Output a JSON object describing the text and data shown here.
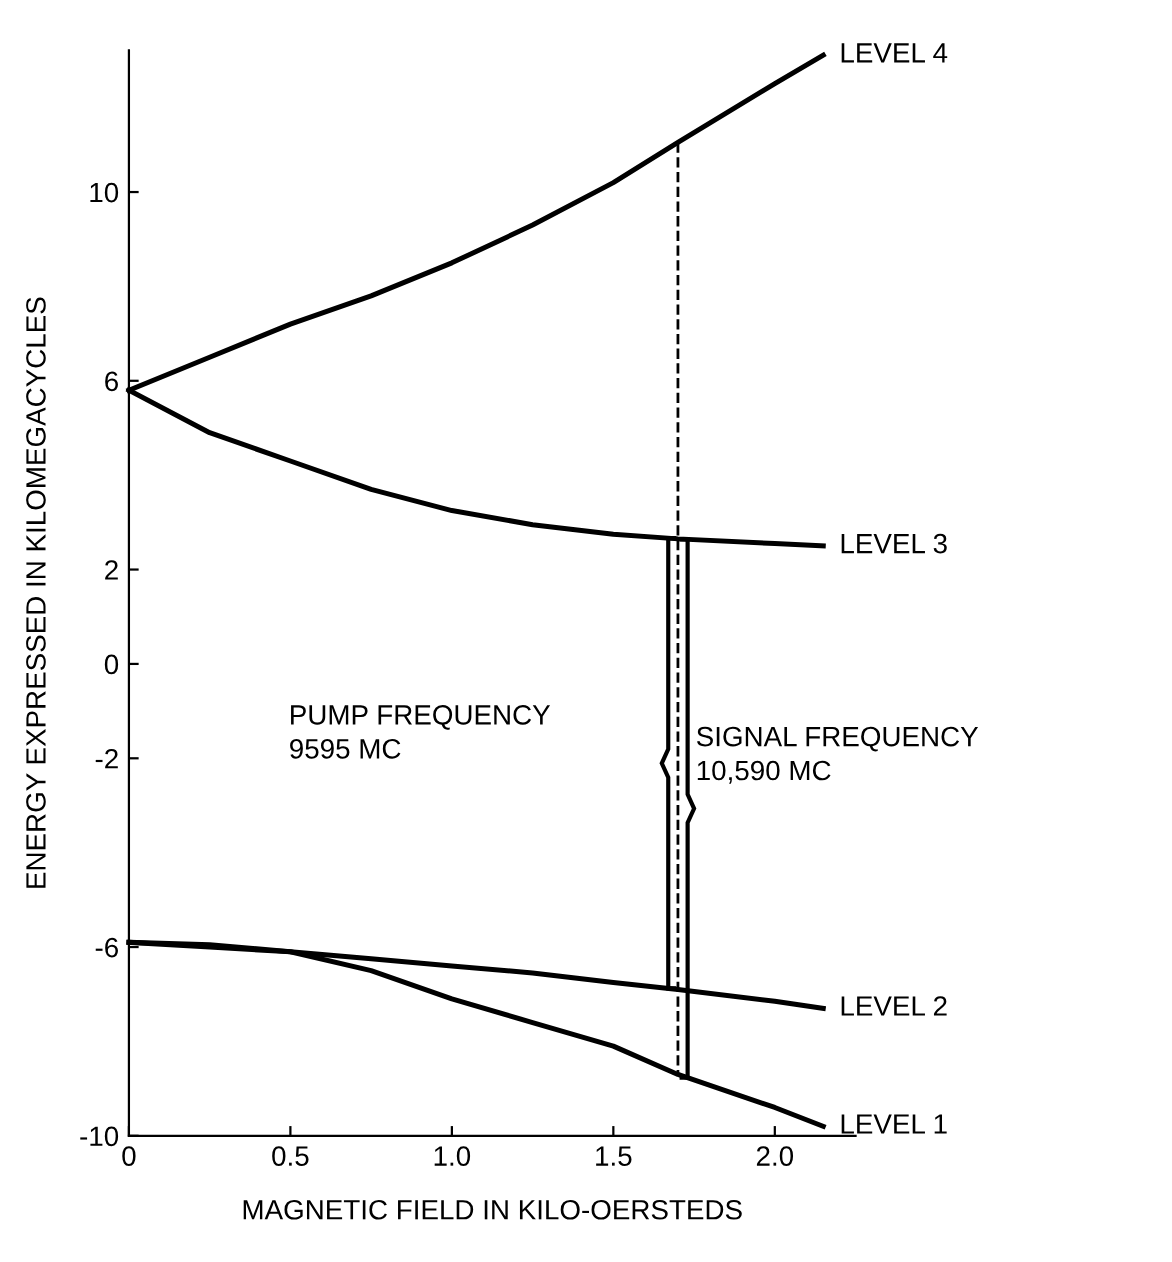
{
  "chart_data": {
    "type": "line",
    "xlabel": "MAGNETIC FIELD IN KILO-OERSTEDS",
    "ylabel": "ENERGY EXPRESSED IN KILOMEGACYCLES",
    "x": [
      0,
      0.25,
      0.5,
      0.75,
      1.0,
      1.25,
      1.5,
      1.7,
      2.0,
      2.15
    ],
    "series": [
      {
        "name": "LEVEL 4",
        "color": "#000000",
        "values": [
          5.8,
          6.5,
          7.2,
          7.8,
          8.5,
          9.3,
          10.2,
          11.05,
          12.3,
          12.9
        ]
      },
      {
        "name": "LEVEL 3",
        "color": "#000000",
        "values": [
          5.8,
          4.9,
          4.3,
          3.7,
          3.25,
          2.95,
          2.75,
          2.65,
          2.55,
          2.5
        ]
      },
      {
        "name": "LEVEL 2",
        "color": "#000000",
        "values": [
          -5.9,
          -6.0,
          -6.1,
          -6.25,
          -6.4,
          -6.55,
          -6.75,
          -6.9,
          -7.15,
          -7.3
        ]
      },
      {
        "name": "LEVEL 1",
        "color": "#000000",
        "values": [
          -5.9,
          -5.95,
          -6.1,
          -6.5,
          -7.1,
          -7.6,
          -8.1,
          -8.7,
          -9.4,
          -9.8
        ]
      },
      {
        "color": "#000000",
        "line_style": "dashed",
        "x": [
          1.7,
          1.7
        ],
        "values": [
          11.05,
          -8.7
        ]
      }
    ],
    "annotations": [
      "PUMP FREQUENCY\n9595 MC",
      "SIGNAL FREQUENCY\n10,590 MC"
    ],
    "xlim": [
      0,
      2.25
    ],
    "ylim": [
      -10,
      13
    ],
    "xticks": [
      0,
      0.5,
      {
        "value": 1,
        "label": "1.0"
      },
      1.5,
      {
        "value": 2,
        "label": "2.0"
      }
    ],
    "yticks": [
      10,
      6,
      2,
      0,
      -2,
      -6,
      -10
    ],
    "grid": false,
    "legend": false,
    "line_style": "solid",
    "marker": "none"
  }
}
